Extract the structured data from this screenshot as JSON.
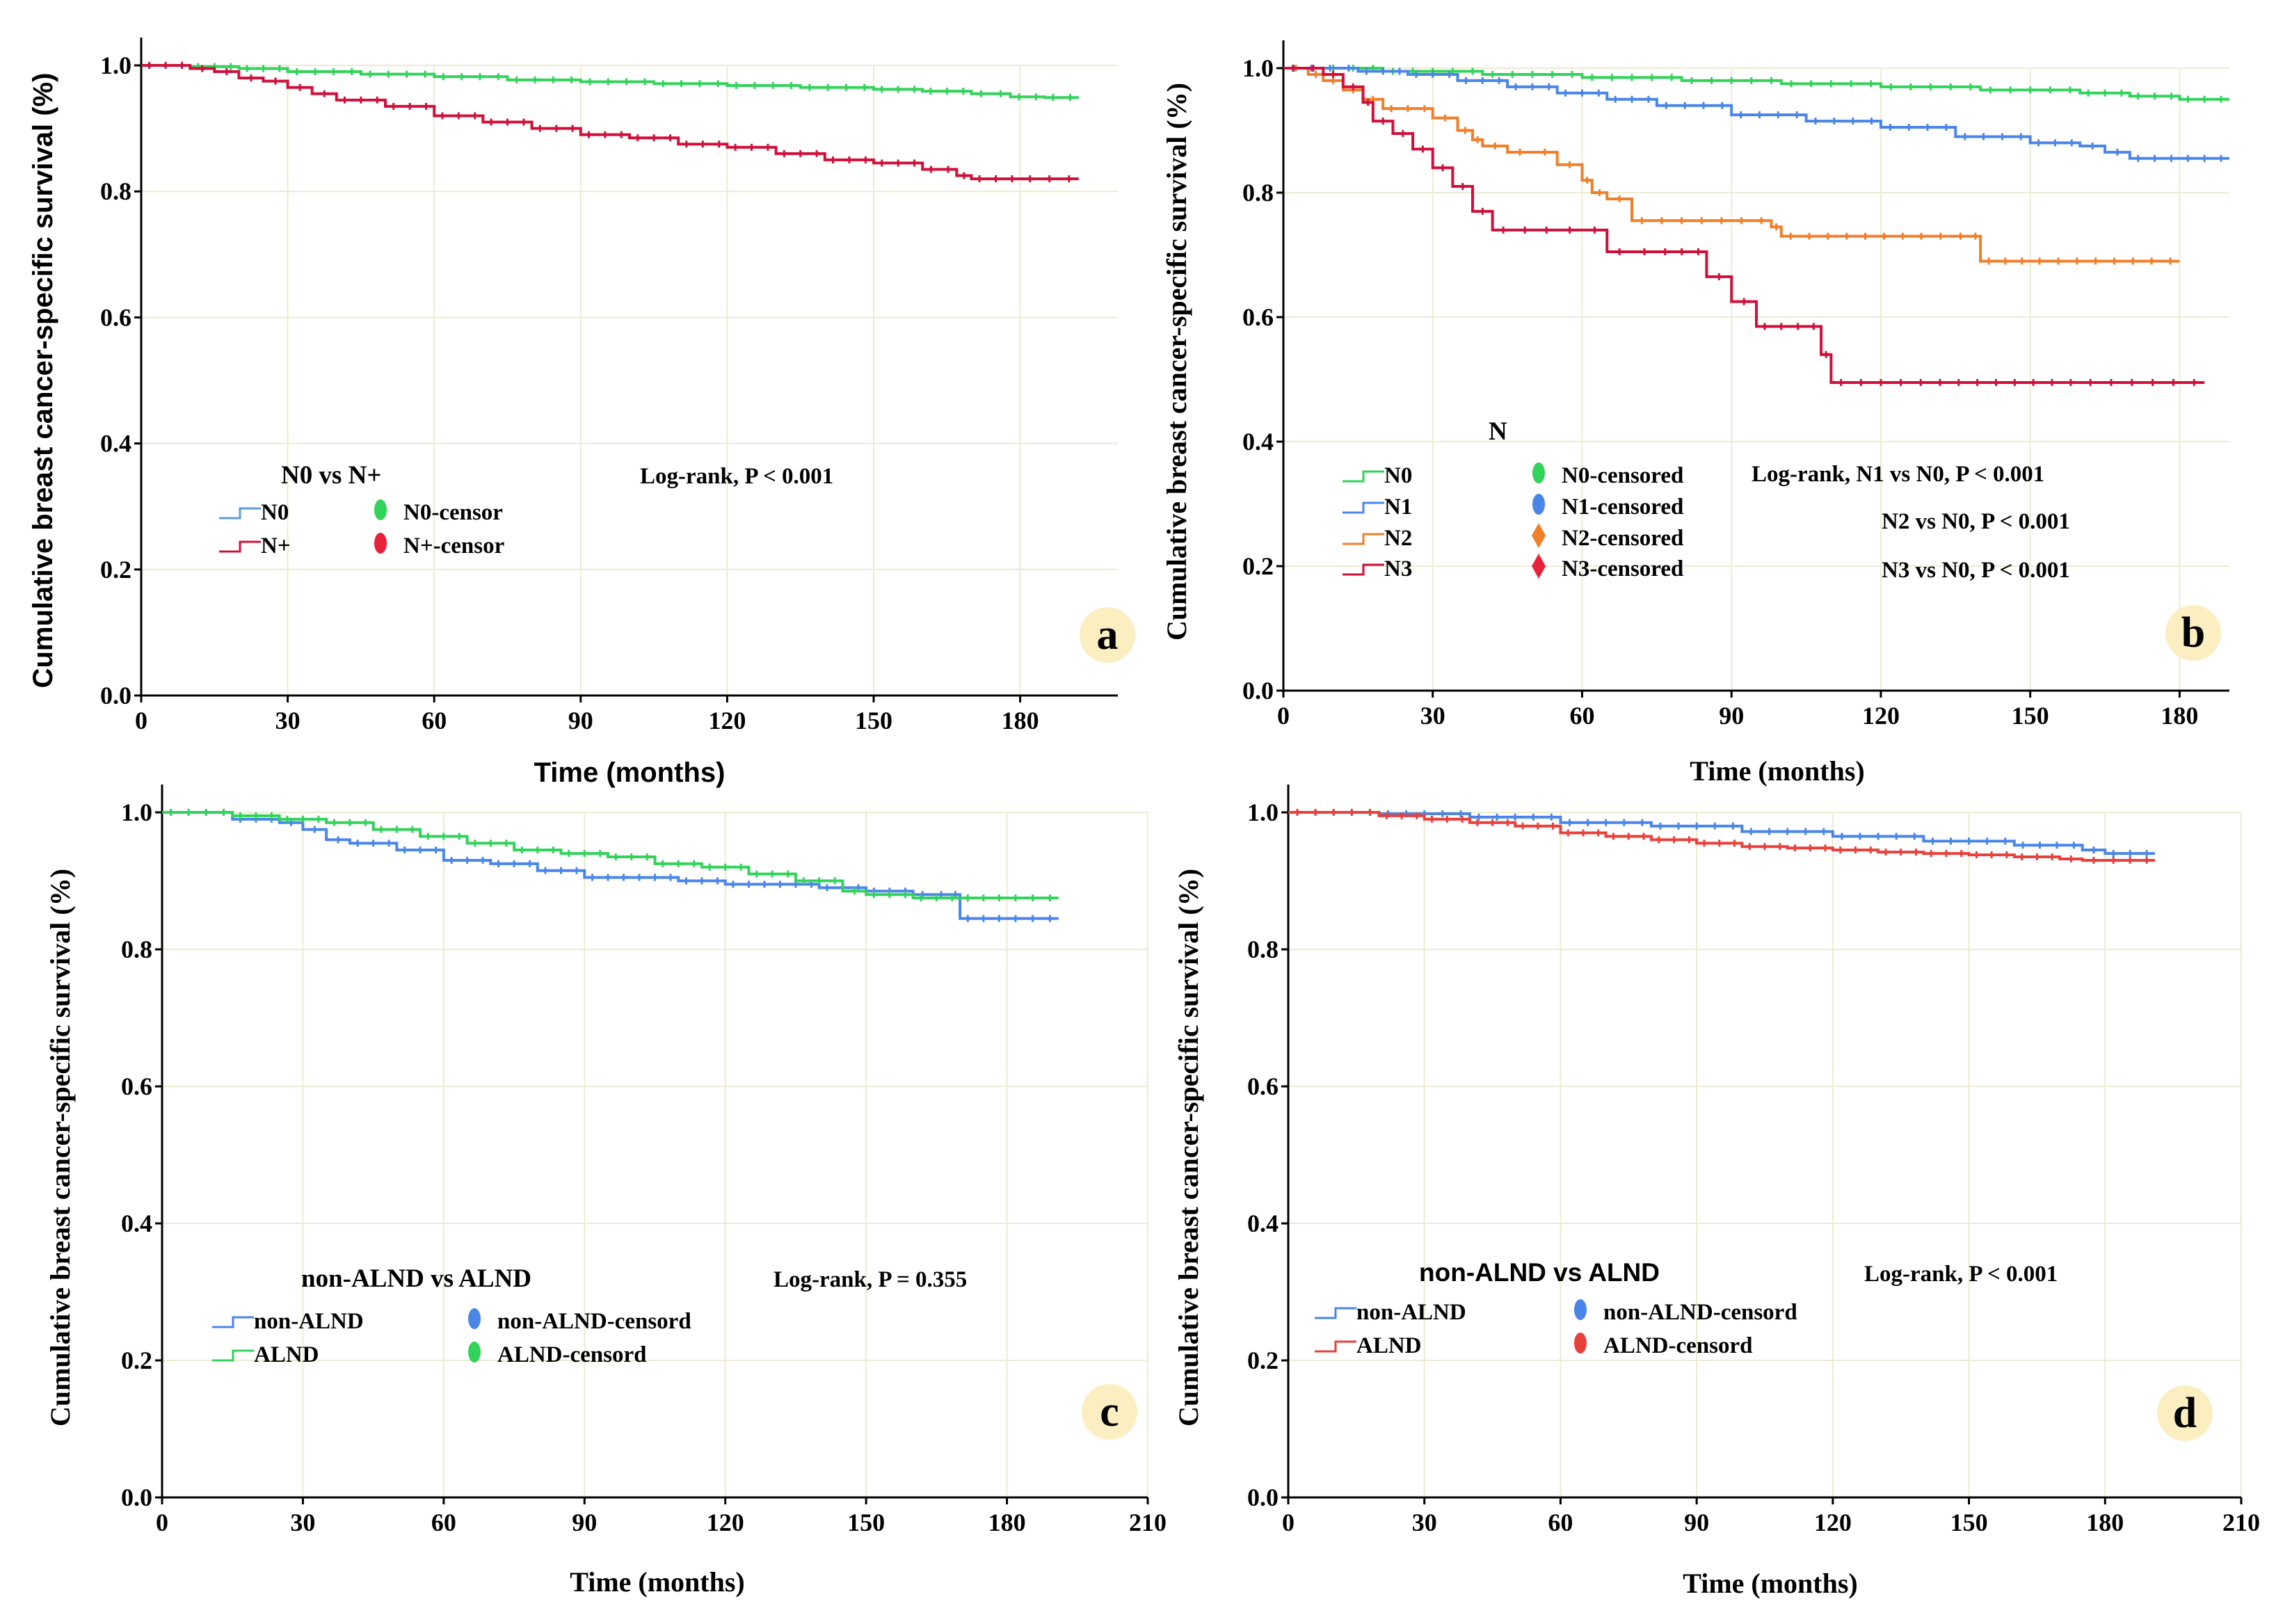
{
  "chart_data": [
    {
      "panel": "a",
      "type": "line",
      "subtype": "kaplan-meier",
      "xlabel": "Time (months)",
      "ylabel": "Cumulative breast cancer-specific survival (%)",
      "xlim": [
        0,
        200
      ],
      "ylim": [
        0,
        1.0
      ],
      "xticks": [
        0,
        30,
        60,
        90,
        120,
        150,
        180
      ],
      "yticks": [
        0.0,
        0.2,
        0.4,
        0.6,
        0.8,
        1.0
      ],
      "x_tick_labels": [
        "0",
        "30",
        "60",
        "90",
        "120",
        "150",
        "180"
      ],
      "y_tick_labels": [
        "0.0",
        "0.2",
        "0.4",
        "0.6",
        "0.8",
        "1.0"
      ],
      "legend_title": "N0 vs N+",
      "legend_entries": [
        {
          "label": "N0",
          "kind": "line",
          "color": "#5b9bd5"
        },
        {
          "label": "N+",
          "kind": "line",
          "color": "#d0103a"
        },
        {
          "label": "N0-censor",
          "kind": "marker",
          "color": "#32d35a"
        },
        {
          "label": "N+-censor",
          "kind": "marker",
          "color": "#e8223a"
        }
      ],
      "annotations": [
        "Log-rank, P < 0.001"
      ],
      "badge": "a",
      "series": [
        {
          "name": "N0",
          "color": "#32d35a",
          "x": [
            0,
            10,
            20,
            30,
            45,
            60,
            75,
            90,
            105,
            120,
            135,
            150,
            160,
            170,
            178,
            185,
            192
          ],
          "y": [
            1.0,
            0.998,
            0.995,
            0.99,
            0.986,
            0.982,
            0.977,
            0.974,
            0.971,
            0.968,
            0.965,
            0.962,
            0.959,
            0.955,
            0.95,
            0.949,
            0.949
          ]
        },
        {
          "name": "N+",
          "color": "#d0103a",
          "x": [
            0,
            10,
            15,
            20,
            25,
            30,
            35,
            40,
            50,
            60,
            70,
            80,
            90,
            100,
            110,
            120,
            130,
            140,
            150,
            160,
            167,
            170,
            180,
            192
          ],
          "y": [
            1.0,
            0.995,
            0.99,
            0.98,
            0.975,
            0.965,
            0.955,
            0.945,
            0.935,
            0.92,
            0.91,
            0.9,
            0.89,
            0.885,
            0.875,
            0.87,
            0.86,
            0.85,
            0.845,
            0.835,
            0.825,
            0.82,
            0.82,
            0.82
          ]
        }
      ]
    },
    {
      "panel": "b",
      "type": "line",
      "subtype": "kaplan-meier",
      "xlabel": "Time (months)",
      "ylabel": "Cumulative breast cancer-specific survival (%)",
      "xlim": [
        0,
        190
      ],
      "ylim": [
        0,
        1.0
      ],
      "xticks": [
        0,
        30,
        60,
        90,
        120,
        150,
        180
      ],
      "yticks": [
        0.0,
        0.2,
        0.4,
        0.6,
        0.8,
        1.0
      ],
      "x_tick_labels": [
        "0",
        "30",
        "60",
        "90",
        "120",
        "150",
        "180"
      ],
      "y_tick_labels": [
        "0.0",
        "0.2",
        "0.4",
        "0.6",
        "0.8",
        "1.0"
      ],
      "legend_title": "N",
      "legend_entries": [
        {
          "label": "N0",
          "kind": "line",
          "color": "#32d35a"
        },
        {
          "label": "N1",
          "kind": "line",
          "color": "#4a86e8"
        },
        {
          "label": "N2",
          "kind": "line",
          "color": "#f07f2a"
        },
        {
          "label": "N3",
          "kind": "line",
          "color": "#d0103a"
        },
        {
          "label": "N0-censored",
          "kind": "marker",
          "color": "#32d35a"
        },
        {
          "label": "N1-censored",
          "kind": "marker",
          "color": "#4a86e8"
        },
        {
          "label": "N2-censored",
          "kind": "diamond",
          "color": "#f07f2a"
        },
        {
          "label": "N3-censored",
          "kind": "diamond",
          "color": "#e8223a"
        }
      ],
      "annotations": [
        "Log-rank, N1 vs N0, P < 0.001",
        "N2 vs N0, P < 0.001",
        "N3 vs N0, P < 0.001"
      ],
      "badge": "b",
      "series": [
        {
          "name": "N0",
          "color": "#32d35a",
          "x": [
            0,
            20,
            40,
            60,
            80,
            100,
            120,
            140,
            160,
            170,
            180,
            190
          ],
          "y": [
            1.0,
            0.995,
            0.99,
            0.985,
            0.98,
            0.975,
            0.97,
            0.965,
            0.96,
            0.955,
            0.95,
            0.95
          ]
        },
        {
          "name": "N1",
          "color": "#4a86e8",
          "x": [
            0,
            15,
            25,
            35,
            45,
            55,
            65,
            75,
            90,
            105,
            120,
            135,
            150,
            160,
            165,
            170,
            180,
            190
          ],
          "y": [
            1.0,
            0.995,
            0.99,
            0.98,
            0.97,
            0.96,
            0.95,
            0.94,
            0.925,
            0.915,
            0.905,
            0.89,
            0.88,
            0.875,
            0.865,
            0.855,
            0.855,
            0.855
          ]
        },
        {
          "name": "N2",
          "color": "#f07f2a",
          "x": [
            0,
            5,
            8,
            12,
            16,
            20,
            30,
            35,
            38,
            40,
            45,
            50,
            55,
            60,
            62,
            65,
            70,
            90,
            98,
            100,
            130,
            138,
            140,
            150,
            180
          ],
          "y": [
            1.0,
            0.99,
            0.98,
            0.965,
            0.95,
            0.935,
            0.92,
            0.9,
            0.885,
            0.875,
            0.865,
            0.865,
            0.845,
            0.82,
            0.8,
            0.79,
            0.755,
            0.755,
            0.745,
            0.73,
            0.73,
            0.73,
            0.69,
            0.69,
            0.69
          ]
        },
        {
          "name": "N3",
          "color": "#d0103a",
          "x": [
            0,
            8,
            12,
            16,
            18,
            22,
            26,
            30,
            34,
            38,
            42,
            55,
            60,
            65,
            70,
            75,
            85,
            90,
            95,
            105,
            108,
            110,
            130,
            160,
            185
          ],
          "y": [
            1.0,
            0.99,
            0.97,
            0.945,
            0.915,
            0.895,
            0.87,
            0.84,
            0.81,
            0.77,
            0.74,
            0.74,
            0.74,
            0.705,
            0.705,
            0.705,
            0.665,
            0.625,
            0.585,
            0.585,
            0.54,
            0.495,
            0.495,
            0.495,
            0.495
          ]
        }
      ]
    },
    {
      "panel": "c",
      "type": "line",
      "subtype": "kaplan-meier",
      "xlabel": "Time (months)",
      "ylabel": "Cumulative breast cancer-specific survival (%)",
      "xlim": [
        0,
        210
      ],
      "ylim": [
        0,
        1.0
      ],
      "xticks": [
        0,
        30,
        60,
        90,
        120,
        150,
        180,
        210
      ],
      "yticks": [
        0.0,
        0.2,
        0.4,
        0.6,
        0.8,
        1.0
      ],
      "x_tick_labels": [
        "0",
        "30",
        "60",
        "90",
        "120",
        "150",
        "180",
        "210"
      ],
      "y_tick_labels": [
        "0.0",
        "0.2",
        "0.4",
        "0.6",
        "0.8",
        "1.0"
      ],
      "legend_title": "non-ALND vs ALND",
      "legend_entries": [
        {
          "label": "non-ALND",
          "kind": "line",
          "color": "#4a86e8"
        },
        {
          "label": "ALND",
          "kind": "line",
          "color": "#32d35a"
        },
        {
          "label": "non-ALND-censord",
          "kind": "marker",
          "color": "#4a86e8"
        },
        {
          "label": "ALND-censord",
          "kind": "marker",
          "color": "#32d35a"
        }
      ],
      "annotations": [
        "Log-rank, P = 0.355"
      ],
      "badge": "c",
      "series": [
        {
          "name": "non-ALND",
          "color": "#4a86e8",
          "x": [
            0,
            15,
            25,
            30,
            35,
            40,
            50,
            60,
            70,
            80,
            90,
            100,
            110,
            120,
            130,
            140,
            150,
            160,
            168,
            170,
            180,
            191
          ],
          "y": [
            1.0,
            0.99,
            0.985,
            0.975,
            0.96,
            0.955,
            0.945,
            0.93,
            0.925,
            0.915,
            0.905,
            0.905,
            0.9,
            0.895,
            0.895,
            0.89,
            0.885,
            0.88,
            0.88,
            0.845,
            0.845,
            0.845
          ]
        },
        {
          "name": "ALND",
          "color": "#32d35a",
          "x": [
            0,
            15,
            25,
            35,
            45,
            55,
            65,
            75,
            85,
            95,
            105,
            115,
            125,
            135,
            145,
            150,
            160,
            170,
            180,
            191
          ],
          "y": [
            1.0,
            0.995,
            0.99,
            0.985,
            0.975,
            0.965,
            0.955,
            0.945,
            0.94,
            0.935,
            0.925,
            0.92,
            0.91,
            0.9,
            0.885,
            0.88,
            0.875,
            0.875,
            0.875,
            0.875
          ]
        }
      ]
    },
    {
      "panel": "d",
      "type": "line",
      "subtype": "kaplan-meier",
      "xlabel": "Time (months)",
      "ylabel": "Cumulative breast cancer-specific survival (%)",
      "xlim": [
        0,
        210
      ],
      "ylim": [
        0,
        1.0
      ],
      "xticks": [
        0,
        30,
        60,
        90,
        120,
        150,
        180,
        210
      ],
      "yticks": [
        0.0,
        0.2,
        0.4,
        0.6,
        0.8,
        1.0
      ],
      "x_tick_labels": [
        "0",
        "30",
        "60",
        "90",
        "120",
        "150",
        "180",
        "210"
      ],
      "y_tick_labels": [
        "0.0",
        "0.2",
        "0.4",
        "0.6",
        "0.8",
        "1.0"
      ],
      "legend_title": "non-ALND vs ALND",
      "legend_entries": [
        {
          "label": "non-ALND",
          "kind": "line",
          "color": "#4a86e8"
        },
        {
          "label": "ALND",
          "kind": "line",
          "color": "#e8403a"
        },
        {
          "label": "non-ALND-censord",
          "kind": "marker",
          "color": "#4a86e8"
        },
        {
          "label": "ALND-censord",
          "kind": "marker",
          "color": "#e8403a"
        }
      ],
      "annotations": [
        "Log-rank, P < 0.001"
      ],
      "badge": "d",
      "series": [
        {
          "name": "non-ALND",
          "color": "#4a86e8",
          "x": [
            0,
            20,
            40,
            60,
            80,
            100,
            120,
            140,
            160,
            175,
            180,
            191
          ],
          "y": [
            1.0,
            0.998,
            0.993,
            0.985,
            0.98,
            0.972,
            0.965,
            0.958,
            0.952,
            0.945,
            0.94,
            0.94
          ]
        },
        {
          "name": "ALND",
          "color": "#e8403a",
          "x": [
            0,
            20,
            30,
            40,
            50,
            60,
            70,
            80,
            90,
            100,
            110,
            120,
            130,
            140,
            150,
            160,
            170,
            175,
            180,
            191
          ],
          "y": [
            1.0,
            0.995,
            0.99,
            0.985,
            0.98,
            0.97,
            0.965,
            0.96,
            0.955,
            0.95,
            0.948,
            0.945,
            0.942,
            0.94,
            0.938,
            0.935,
            0.932,
            0.93,
            0.93,
            0.93
          ]
        }
      ]
    }
  ]
}
